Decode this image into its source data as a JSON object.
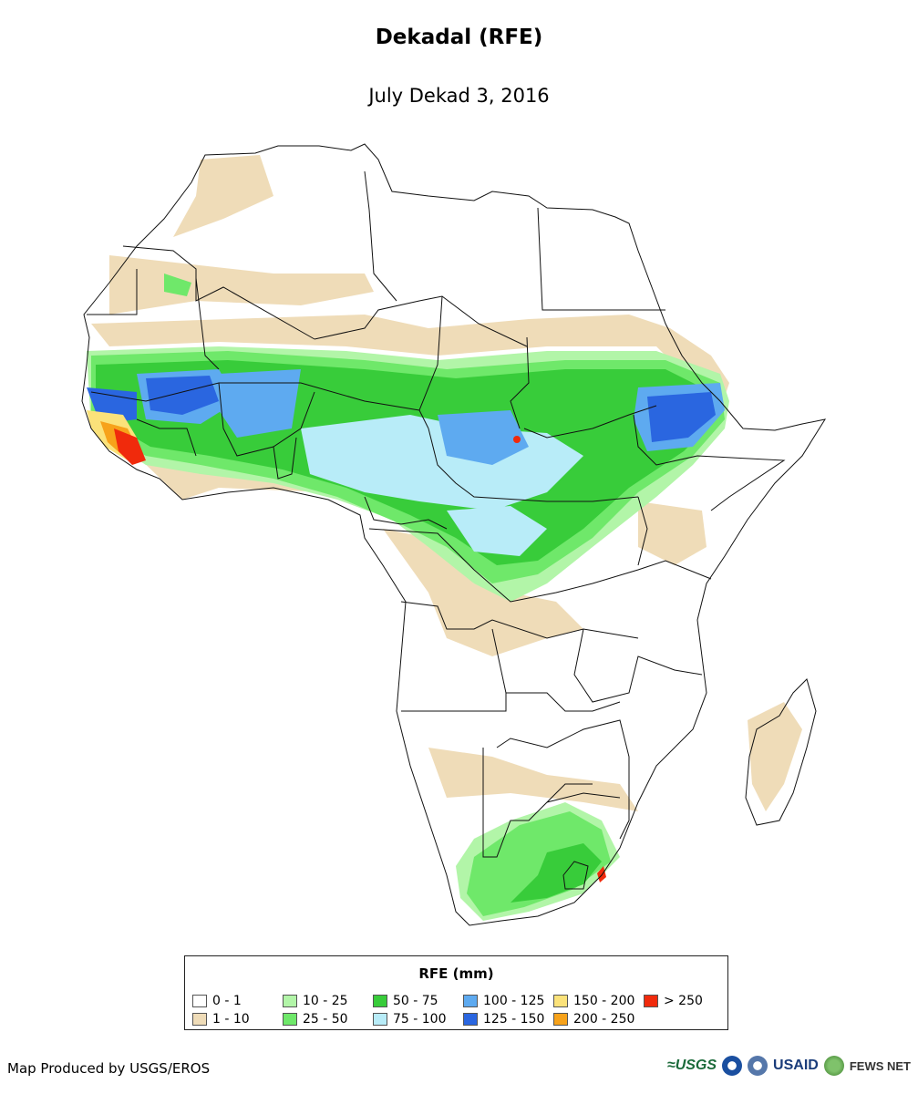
{
  "title": "Dekadal (RFE)",
  "subtitle": "July Dekad 3, 2016",
  "legend": {
    "title": "RFE (mm)",
    "classes": [
      {
        "label": "0 - 1",
        "color": "#ffffff"
      },
      {
        "label": "1 - 10",
        "color": "#efdcb8"
      },
      {
        "label": "10 - 25",
        "color": "#b2f5a8"
      },
      {
        "label": "25 - 50",
        "color": "#6fe86a"
      },
      {
        "label": "50 - 75",
        "color": "#38cc3a"
      },
      {
        "label": "75 - 100",
        "color": "#b8ecf8"
      },
      {
        "label": "100 - 125",
        "color": "#5eaaf0"
      },
      {
        "label": "125 - 150",
        "color": "#2a66e0"
      },
      {
        "label": "150 - 200",
        "color": "#fbe27a"
      },
      {
        "label": "200 - 250",
        "color": "#f7a21a"
      },
      {
        "label": "> 250",
        "color": "#f02a0c"
      }
    ]
  },
  "footer": {
    "credit": "Map Produced by USGS/EROS",
    "logos": {
      "usgs": "≈USGS",
      "usaid": "USAID",
      "fews": "FEWS NET"
    }
  },
  "colors": {
    "boundary": "#111111",
    "background": "#ffffff"
  }
}
